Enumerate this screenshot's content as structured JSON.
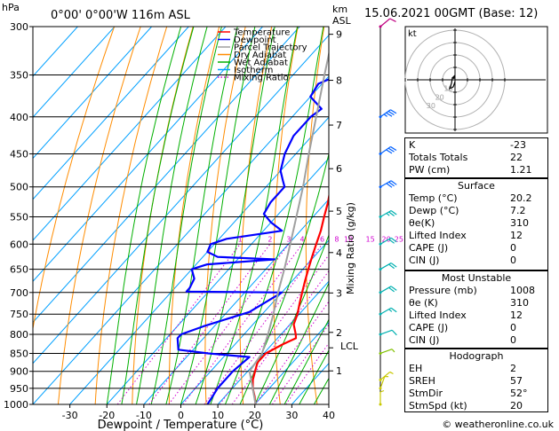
{
  "header": {
    "hpa_label": "hPa",
    "location": "0°00' 0°00'W 116m ASL",
    "km_label": "km",
    "asl_label": "ASL",
    "date": "15.06.2021 00GMT (Base: 12)"
  },
  "legend": [
    {
      "label": "Temperature",
      "color": "#ff0000",
      "style": "solid"
    },
    {
      "label": "Dewpoint",
      "color": "#0000ff",
      "style": "solid"
    },
    {
      "label": "Parcel Trajectory",
      "color": "#a0a0a0",
      "style": "solid"
    },
    {
      "label": "Dry Adiabat",
      "color": "#ff8c00",
      "style": "solid"
    },
    {
      "label": "Wet Adiabat",
      "color": "#00b000",
      "style": "solid"
    },
    {
      "label": "Isotherm",
      "color": "#00a0ff",
      "style": "solid"
    },
    {
      "label": "Mixing Ratio",
      "color": "#d000d0",
      "style": "dotted"
    }
  ],
  "axes": {
    "xlabel": "Dewpoint / Temperature (°C)",
    "mixing_ratio_label": "Mixing Ratio (g/kg)",
    "lcl_label": "LCL",
    "pressure_ticks": [
      300,
      350,
      400,
      450,
      500,
      550,
      600,
      650,
      700,
      750,
      800,
      850,
      900,
      950,
      1000
    ],
    "temp_ticks": [
      -30,
      -20,
      -10,
      0,
      10,
      20,
      30,
      40
    ],
    "km_ticks": [
      1,
      2,
      3,
      4,
      5,
      6,
      7,
      8,
      9
    ],
    "mixing_ratio_values": [
      "1",
      "2",
      "3",
      "4",
      "6",
      "8",
      "10",
      "15",
      "20",
      "25"
    ]
  },
  "chart_data": {
    "type": "line",
    "title": "0°00' 0°00'W 116m ASL",
    "xlabel": "Dewpoint / Temperature (°C)",
    "ylabel": "hPa",
    "xlim": [
      -40,
      40
    ],
    "ylim": [
      1000,
      300
    ],
    "y_scale": "log",
    "skew": true,
    "grid": true,
    "legend_position": "top-inside",
    "series": [
      {
        "name": "Temperature",
        "color": "#ff0000",
        "points": [
          [
            1000,
            20.2
          ],
          [
            975,
            18
          ],
          [
            950,
            15.5
          ],
          [
            925,
            13.5
          ],
          [
            900,
            12
          ],
          [
            875,
            10.5
          ],
          [
            850,
            10.5
          ],
          [
            825,
            13
          ],
          [
            810,
            15
          ],
          [
            800,
            14
          ],
          [
            775,
            11
          ],
          [
            750,
            9.5
          ],
          [
            725,
            7.5
          ],
          [
            700,
            5.5
          ],
          [
            675,
            3.5
          ],
          [
            650,
            1.5
          ],
          [
            625,
            -0.5
          ],
          [
            600,
            -2.5
          ],
          [
            575,
            -4.5
          ],
          [
            550,
            -7
          ],
          [
            525,
            -9.5
          ],
          [
            500,
            -12.5
          ],
          [
            475,
            -15
          ],
          [
            450,
            -18
          ],
          [
            425,
            -22
          ],
          [
            400,
            -25.5
          ],
          [
            375,
            -29.5
          ],
          [
            350,
            -34
          ],
          [
            325,
            -38.5
          ],
          [
            300,
            -41
          ]
        ]
      },
      {
        "name": "Dewpoint",
        "color": "#0000ff",
        "points": [
          [
            1000,
            7.2
          ],
          [
            950,
            6
          ],
          [
            900,
            6
          ],
          [
            860,
            7
          ],
          [
            850,
            -5
          ],
          [
            840,
            -14
          ],
          [
            830,
            -15
          ],
          [
            810,
            -17
          ],
          [
            800,
            -17
          ],
          [
            780,
            -13
          ],
          [
            760,
            -8
          ],
          [
            745,
            -4
          ],
          [
            700,
            0
          ],
          [
            698,
            -26
          ],
          [
            690,
            -26
          ],
          [
            670,
            -27
          ],
          [
            650,
            -30
          ],
          [
            640,
            -27
          ],
          [
            630,
            -10
          ],
          [
            625,
            -26
          ],
          [
            615,
            -30
          ],
          [
            600,
            -31
          ],
          [
            590,
            -28
          ],
          [
            575,
            -15
          ],
          [
            560,
            -20
          ],
          [
            545,
            -24
          ],
          [
            525,
            -25
          ],
          [
            500,
            -25
          ],
          [
            490,
            -27
          ],
          [
            475,
            -30
          ],
          [
            450,
            -33
          ],
          [
            425,
            -35
          ],
          [
            400,
            -35
          ],
          [
            390,
            -34
          ],
          [
            375,
            -40
          ],
          [
            360,
            -41
          ],
          [
            340,
            -34
          ],
          [
            325,
            -38
          ],
          [
            305,
            -46
          ],
          [
            300,
            -46
          ]
        ]
      },
      {
        "name": "Parcel Trajectory",
        "color": "#a0a0a0",
        "points": [
          [
            1000,
            20.2
          ],
          [
            950,
            15.5
          ],
          [
            900,
            10.5
          ],
          [
            850,
            9.5
          ],
          [
            825,
            8
          ],
          [
            800,
            6.5
          ],
          [
            750,
            3
          ],
          [
            700,
            -1
          ],
          [
            650,
            -5
          ],
          [
            600,
            -9.5
          ],
          [
            550,
            -14.5
          ],
          [
            500,
            -20
          ],
          [
            450,
            -26.5
          ],
          [
            400,
            -33.5
          ],
          [
            350,
            -41.5
          ],
          [
            300,
            -50.5
          ]
        ]
      }
    ],
    "wind_barbs": [
      {
        "p": 1000,
        "dir": 180,
        "spd": 5
      },
      {
        "p": 950,
        "dir": 200,
        "spd": 5
      },
      {
        "p": 925,
        "dir": 230,
        "spd": 5
      },
      {
        "p": 850,
        "dir": 250,
        "spd": 5
      },
      {
        "p": 800,
        "dir": 250,
        "spd": 10
      },
      {
        "p": 750,
        "dir": 240,
        "spd": 15
      },
      {
        "p": 700,
        "dir": 240,
        "spd": 20
      },
      {
        "p": 650,
        "dir": 240,
        "spd": 20
      },
      {
        "p": 600,
        "dir": 240,
        "spd": 20
      },
      {
        "p": 550,
        "dir": 240,
        "spd": 25
      },
      {
        "p": 500,
        "dir": 240,
        "spd": 30
      },
      {
        "p": 450,
        "dir": 235,
        "spd": 30
      },
      {
        "p": 400,
        "dir": 235,
        "spd": 35
      },
      {
        "p": 300,
        "dir": 230,
        "spd": 10
      }
    ]
  },
  "hodograph": {
    "label": "kt",
    "ring_labels": [
      "10",
      "20",
      "30"
    ]
  },
  "indices": [
    {
      "label": "K",
      "value": "-23"
    },
    {
      "label": "Totals Totals",
      "value": "22"
    },
    {
      "label": "PW (cm)",
      "value": "1.21"
    }
  ],
  "surface": {
    "title": "Surface",
    "rows": [
      {
        "label": "Temp (°C)",
        "value": "20.2"
      },
      {
        "label": "Dewp (°C)",
        "value": "7.2"
      },
      {
        "label": "θe(K)",
        "value": "310"
      },
      {
        "label": "Lifted Index",
        "value": "12"
      },
      {
        "label": "CAPE (J)",
        "value": "0"
      },
      {
        "label": "CIN (J)",
        "value": "0"
      }
    ]
  },
  "most_unstable": {
    "title": "Most Unstable",
    "rows": [
      {
        "label": "Pressure (mb)",
        "value": "1008"
      },
      {
        "label": "θe (K)",
        "value": "310"
      },
      {
        "label": "Lifted Index",
        "value": "12"
      },
      {
        "label": "CAPE (J)",
        "value": "0"
      },
      {
        "label": "CIN (J)",
        "value": "0"
      }
    ]
  },
  "hodograph_table": {
    "title": "Hodograph",
    "rows": [
      {
        "label": "EH",
        "value": "2"
      },
      {
        "label": "SREH",
        "value": "57"
      },
      {
        "label": "StmDir",
        "value": "52°"
      },
      {
        "label": "StmSpd (kt)",
        "value": "20"
      }
    ]
  },
  "footer": {
    "copyright": "© weatheronline.co.uk"
  }
}
